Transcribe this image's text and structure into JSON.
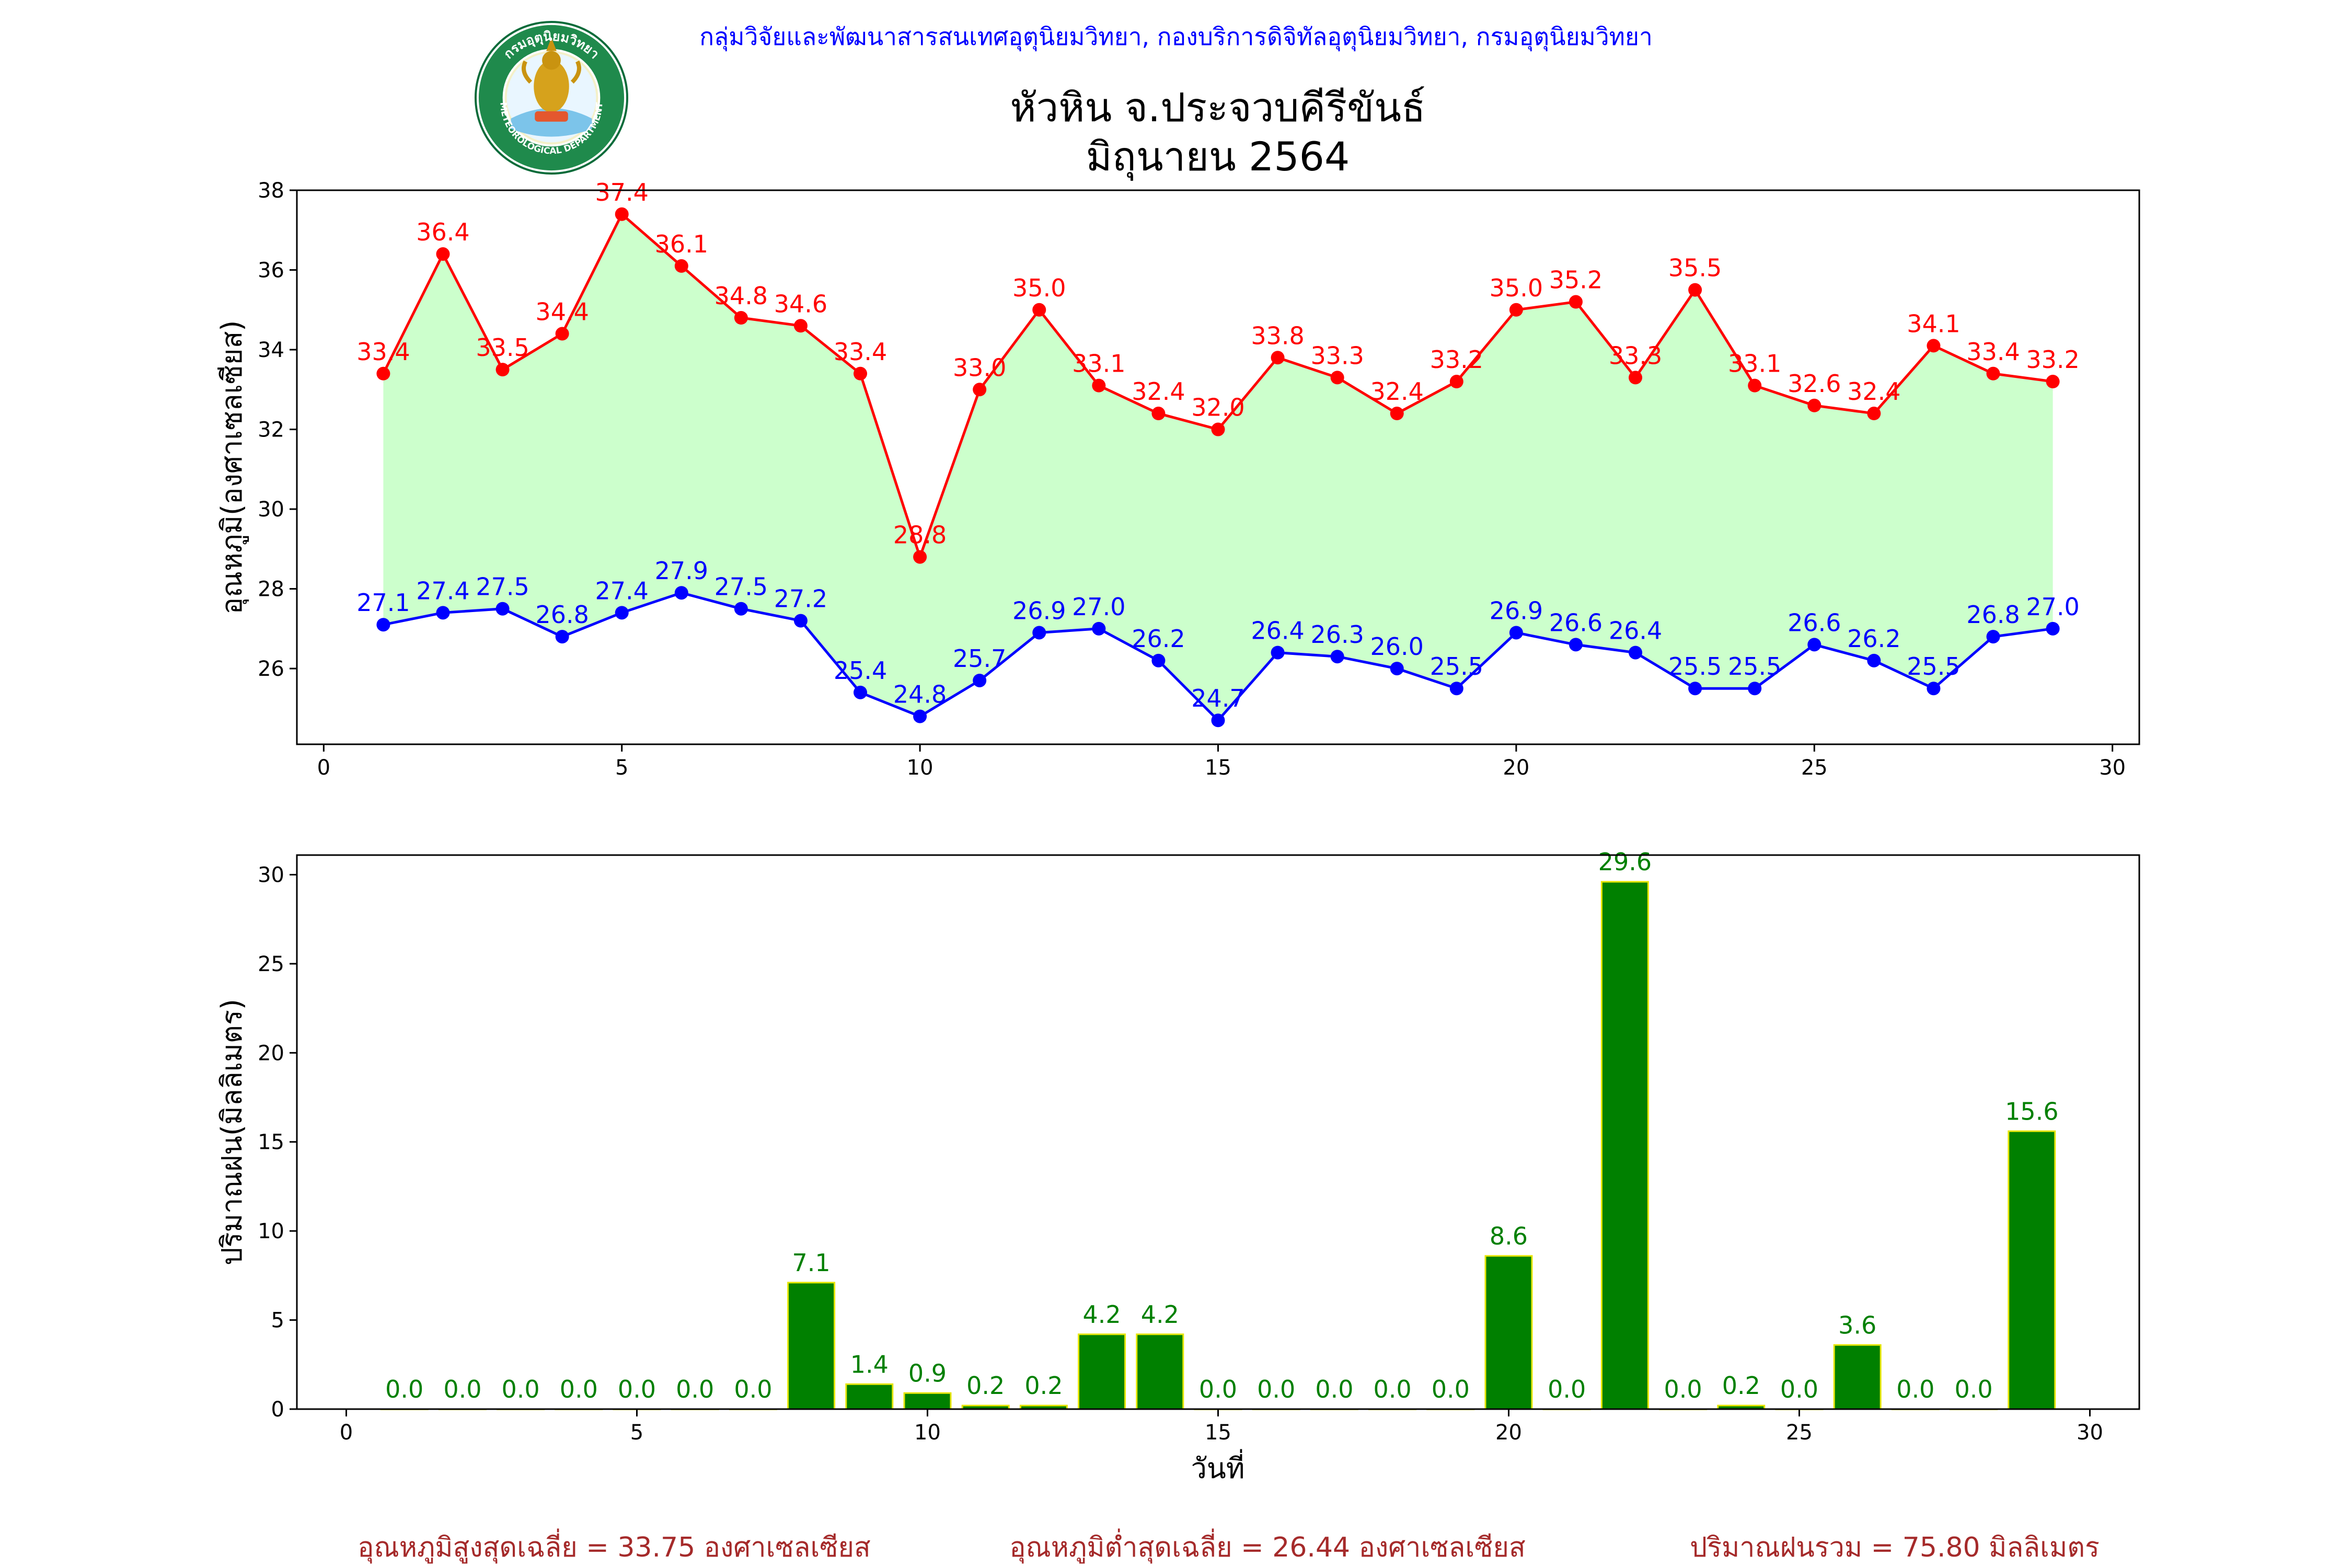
{
  "header": {
    "department_line": "กลุ่มวิจัยและพัฒนาสารสนเทศอุตุนิยมวิทยา, กองบริการดิจิทัลอุตุนิยมวิทยา, กรมอุตุนิยมวิทยา",
    "title_line1": "หัวหิน จ.ประจวบคีรีขันธ์",
    "title_line2": "มิถุนายน 2564"
  },
  "logo": {
    "top_text": "กรมอุตุนิยมวิทยา",
    "bottom_text": "METEOROLOGICAL DEPARTMENT"
  },
  "colors": {
    "max_temp": "#ff0000",
    "min_temp": "#0000ff",
    "fill": "#ccffcc",
    "rain_bar": "#008000",
    "rain_edge": "#e6e600",
    "rain_label": "#008000",
    "footer": "#a52a2a",
    "header_line": "#0000ff"
  },
  "chart_data": [
    {
      "type": "line",
      "ylabel": "อุณหภูมิ(องศาเซลเซียส)",
      "xlabel": "",
      "xlim": [
        -0.45,
        30.45
      ],
      "ylim": [
        24.1,
        38.0
      ],
      "xticks": [
        0,
        5,
        10,
        15,
        20,
        25,
        30
      ],
      "yticks": [
        26,
        28,
        30,
        32,
        34,
        36,
        38
      ],
      "x": [
        1,
        2,
        3,
        4,
        5,
        6,
        7,
        8,
        9,
        10,
        11,
        12,
        13,
        14,
        15,
        16,
        17,
        18,
        19,
        20,
        21,
        22,
        23,
        24,
        25,
        26,
        27,
        28,
        29
      ],
      "series": [
        {
          "key": "max",
          "values": [
            33.4,
            36.4,
            33.5,
            34.4,
            37.4,
            36.1,
            34.8,
            34.6,
            33.4,
            28.8,
            33.0,
            35.0,
            33.1,
            32.4,
            32.0,
            33.8,
            33.3,
            32.4,
            33.2,
            35.0,
            35.2,
            33.3,
            35.5,
            33.1,
            32.6,
            32.4,
            34.1,
            33.4,
            33.2
          ]
        },
        {
          "key": "min",
          "values": [
            27.1,
            27.4,
            27.5,
            26.8,
            27.4,
            27.9,
            27.5,
            27.2,
            25.4,
            24.8,
            25.7,
            26.9,
            27.0,
            26.2,
            24.7,
            26.4,
            26.3,
            26.0,
            25.5,
            26.9,
            26.6,
            26.4,
            25.5,
            25.5,
            26.6,
            26.2,
            25.5,
            26.8,
            27.0
          ]
        }
      ],
      "grid": false
    },
    {
      "type": "bar",
      "ylabel": "ปริมาณฝน(มิลลิเมตร)",
      "xlabel": "วันที่",
      "xlim": [
        -0.85,
        30.85
      ],
      "ylim": [
        0,
        31.1
      ],
      "xticks": [
        0,
        5,
        10,
        15,
        20,
        25,
        30
      ],
      "yticks": [
        0,
        5,
        10,
        15,
        20,
        25,
        30
      ],
      "x": [
        1,
        2,
        3,
        4,
        5,
        6,
        7,
        8,
        9,
        10,
        11,
        12,
        13,
        14,
        15,
        16,
        17,
        18,
        19,
        20,
        21,
        22,
        23,
        24,
        25,
        26,
        27,
        28,
        29
      ],
      "values": [
        0.0,
        0.0,
        0.0,
        0.0,
        0.0,
        0.0,
        0.0,
        7.1,
        1.4,
        0.9,
        0.2,
        0.2,
        4.2,
        4.2,
        0.0,
        0.0,
        0.0,
        0.0,
        0.0,
        8.6,
        0.0,
        29.6,
        0.0,
        0.2,
        0.0,
        3.6,
        0.0,
        0.0,
        15.6
      ],
      "grid": false
    }
  ],
  "footer": {
    "avg_max": "อุณหภูมิสูงสุดเฉลี่ย = 33.75 องศาเซลเซียส",
    "avg_min": "อุณหภูมิต่ำสุดเฉลี่ย = 26.44 องศาเซลเซียส",
    "total_rain": "ปริมาณฝนรวม = 75.80 มิลลิเมตร"
  }
}
